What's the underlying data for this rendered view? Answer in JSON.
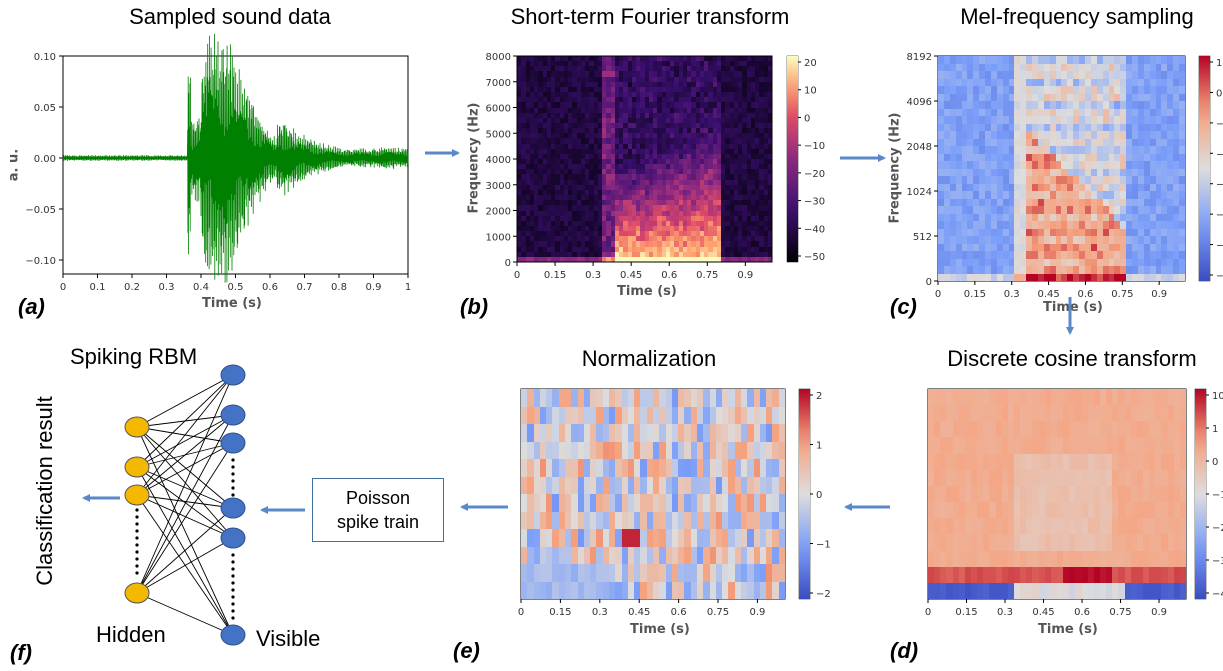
{
  "colors": {
    "arrow": "#5b88c8",
    "wave": "#008000",
    "hidden_node": "#f5b800",
    "visible_node": "#4472c4"
  },
  "panel_a": {
    "title": "Sampled sound data",
    "label": "(a)",
    "ylabel": "a. u.",
    "xlabel": "Time (s)",
    "yticks": [
      "0.10",
      "0.05",
      "0.00",
      "−0.05",
      "−0.10"
    ],
    "xticks": [
      "0",
      "0.1",
      "0.2",
      "0.3",
      "0.4",
      "0.5",
      "0.6",
      "0.7",
      "0.8",
      "0.9",
      "1"
    ]
  },
  "panel_b": {
    "title": "Short-term Fourier transform",
    "label": "(b)",
    "ylabel": "Frequency (Hz)",
    "xlabel": "Time (s)",
    "yticks": [
      "8000",
      "7000",
      "6000",
      "5000",
      "4000",
      "3000",
      "2000",
      "1000",
      "0"
    ],
    "xticks": [
      "0",
      "0.15",
      "0.3",
      "0.45",
      "0.6",
      "0.75",
      "0.9"
    ],
    "cbar_ticks": [
      "20",
      "10",
      "0",
      "−10",
      "−20",
      "−30",
      "−40",
      "−50"
    ]
  },
  "panel_c": {
    "title": "Mel-frequency sampling",
    "label": "(c)",
    "ylabel": "Frequency (Hz)",
    "xlabel": "Time (s)",
    "yticks": [
      "8192",
      "4096",
      "2048",
      "1024",
      "512",
      "0"
    ],
    "xticks": [
      "0",
      "0.15",
      "0.3",
      "0.45",
      "0.6",
      "0.75",
      "0.9"
    ],
    "cbar_ticks": [
      "1",
      "0",
      "−",
      "−",
      "−",
      "−",
      "−",
      "−"
    ]
  },
  "panel_d": {
    "title": "Discrete cosine transform",
    "label": "(d)",
    "xlabel": "Time (s)",
    "xticks": [
      "0",
      "0.15",
      "0.3",
      "0.45",
      "0.6",
      "0.75",
      "0.9"
    ],
    "cbar_ticks": [
      "10",
      "1",
      "0",
      "−1",
      "−2",
      "−3",
      "−4"
    ]
  },
  "panel_e": {
    "title": "Normalization",
    "label": "(e)",
    "xlabel": "Time (s)",
    "xticks": [
      "0",
      "0.15",
      "0.3",
      "0.45",
      "0.6",
      "0.75",
      "0.9"
    ],
    "cbar_ticks": [
      "2",
      "1",
      "0",
      "−1",
      "−2"
    ]
  },
  "panel_f": {
    "title": "Spiking RBM",
    "label": "(f)",
    "hidden_label": "Hidden",
    "visible_label": "Visible",
    "result_label": "Classification result"
  },
  "poisson": {
    "line1": "Poisson",
    "line2": "spike train"
  }
}
